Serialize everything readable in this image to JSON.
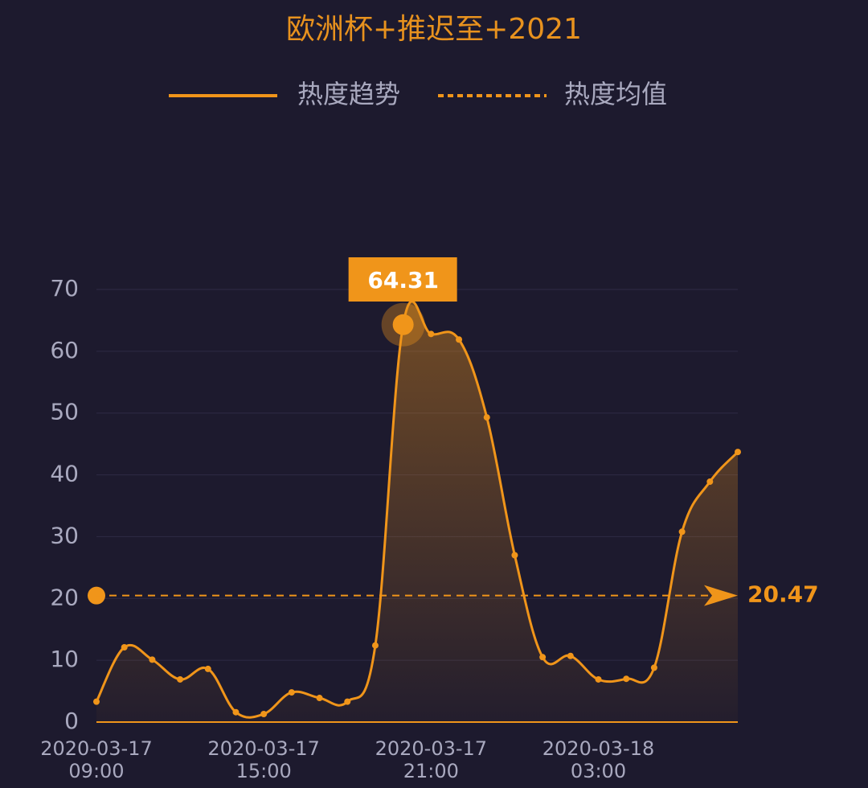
{
  "chart_data": {
    "type": "line",
    "title": "欧洲杯+推迟至+2021",
    "categories": [
      "2020-03-17 09:00",
      "2020-03-17 10:00",
      "2020-03-17 11:00",
      "2020-03-17 12:00",
      "2020-03-17 13:00",
      "2020-03-17 14:00",
      "2020-03-17 15:00",
      "2020-03-17 16:00",
      "2020-03-17 17:00",
      "2020-03-17 18:00",
      "2020-03-17 19:00",
      "2020-03-17 20:00",
      "2020-03-17 21:00",
      "2020-03-17 22:00",
      "2020-03-17 23:00",
      "2020-03-18 00:00",
      "2020-03-18 01:00",
      "2020-03-18 02:00",
      "2020-03-18 03:00",
      "2020-03-18 04:00",
      "2020-03-18 05:00",
      "2020-03-18 06:00",
      "2020-03-18 07:00",
      "2020-03-18 08:00"
    ],
    "series": [
      {
        "name": "热度趋势",
        "color": "#f0951a",
        "values": [
          3.3,
          12.1,
          10.1,
          6.9,
          8.6,
          1.6,
          1.3,
          4.8,
          3.9,
          3.3,
          12.4,
          64.31,
          62.8,
          61.9,
          49.3,
          27.0,
          10.5,
          10.7,
          6.9,
          7.0,
          8.8,
          30.8,
          38.9,
          43.7
        ]
      }
    ],
    "mean": {
      "name": "热度均值",
      "value": 20.47,
      "color": "#f0951a"
    },
    "highlight_index": 11,
    "xticks": [
      "2020-03-17 09:00",
      "2020-03-17 15:00",
      "2020-03-17 21:00",
      "2020-03-18 03:00"
    ],
    "ylim": [
      0,
      70
    ],
    "yticks": [
      0,
      10,
      20,
      30,
      40,
      50,
      60,
      70
    ],
    "grid": true
  }
}
